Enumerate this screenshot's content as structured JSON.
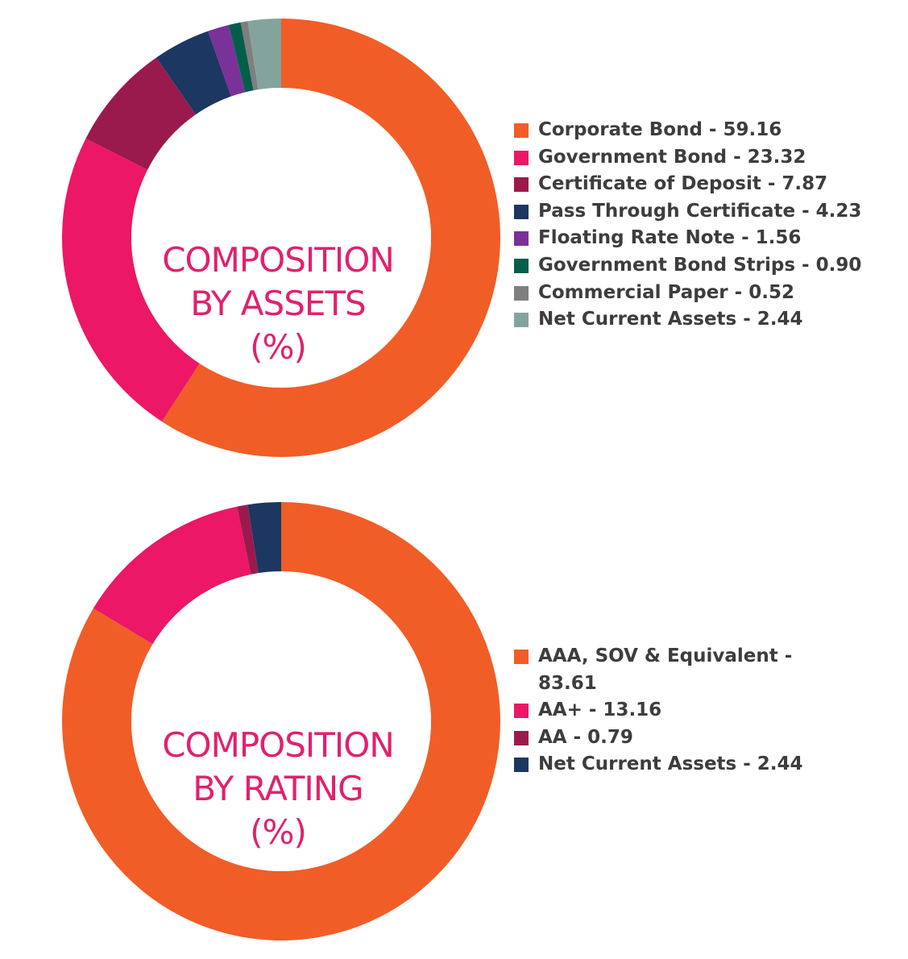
{
  "chart_data": [
    {
      "type": "pie",
      "title": "COMPOSITION BY ASSETS (%)",
      "title_lines": [
        "COMPOSITION",
        "BY ASSETS",
        "(%)"
      ],
      "legend_position": "right",
      "slices": [
        {
          "label": "Corporate Bond - 59.16",
          "value": 59.16,
          "color": "#f15d27"
        },
        {
          "label": "Government Bond - 23.32",
          "value": 23.32,
          "color": "#ec1766"
        },
        {
          "label": "Certificate of Deposit - 7.87",
          "value": 7.87,
          "color": "#9a1a4d"
        },
        {
          "label": "Pass Through Certificate - 4.23",
          "value": 4.23,
          "color": "#1c3761"
        },
        {
          "label": "Floating Rate Note - 1.56",
          "value": 1.56,
          "color": "#7a3198"
        },
        {
          "label": "Government Bond Strips - 0.90",
          "value": 0.9,
          "color": "#035f4a"
        },
        {
          "label": "Commercial Paper - 0.52",
          "value": 0.52,
          "color": "#7f7f7f"
        },
        {
          "label": "Net Current Assets - 2.44",
          "value": 2.44,
          "color": "#83a49c"
        }
      ]
    },
    {
      "type": "pie",
      "title": "COMPOSITION BY RATING (%)",
      "title_lines": [
        "COMPOSITION",
        "BY RATING",
        "(%)"
      ],
      "legend_position": "right",
      "slices": [
        {
          "label": "AAA, SOV & Equivalent - 83.61",
          "value": 83.61,
          "color": "#f15d27"
        },
        {
          "label": "AA+ - 13.16",
          "value": 13.16,
          "color": "#ec1766"
        },
        {
          "label": "AA - 0.79",
          "value": 0.79,
          "color": "#9a1a4d"
        },
        {
          "label": "Net Current Assets - 2.44",
          "value": 2.44,
          "color": "#1c3761"
        }
      ]
    }
  ]
}
